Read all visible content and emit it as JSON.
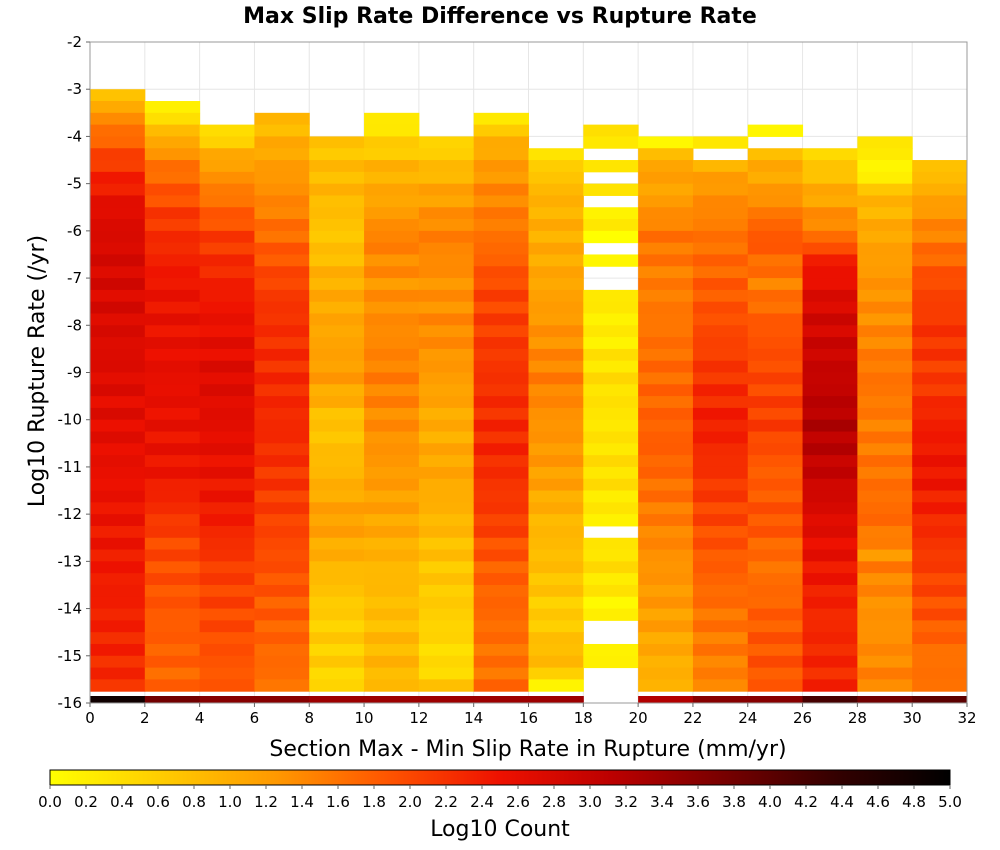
{
  "chart_data": {
    "type": "heatmap",
    "title": "Max Slip Rate Difference vs Rupture Rate",
    "xlabel": "Section Max - Min Slip Rate in Rupture (mm/yr)",
    "ylabel": "Log10 Rupture Rate (/yr)",
    "xlim": [
      0,
      32
    ],
    "ylim": [
      -16,
      -2
    ],
    "x_ticks": [
      "0",
      "2",
      "4",
      "6",
      "8",
      "10",
      "12",
      "14",
      "16",
      "18",
      "20",
      "22",
      "24",
      "26",
      "28",
      "30",
      "32"
    ],
    "y_ticks": [
      "-2",
      "-3",
      "-4",
      "-5",
      "-6",
      "-7",
      "-8",
      "-9",
      "-10",
      "-11",
      "-12",
      "-13",
      "-14",
      "-15",
      "-16"
    ],
    "x_bin_width": 2,
    "y_bin_height": 0.25,
    "grid": true,
    "colorbar": {
      "label": "Log10 Count",
      "range": [
        0,
        5
      ],
      "ticks": [
        "0.0",
        "0.2",
        "0.4",
        "0.6",
        "0.8",
        "1.0",
        "1.2",
        "1.4",
        "1.6",
        "1.8",
        "2.0",
        "2.2",
        "2.4",
        "2.6",
        "2.8",
        "3.0",
        "3.2",
        "3.4",
        "3.6",
        "3.8",
        "4.0",
        "4.2",
        "4.4",
        "4.6",
        "4.8",
        "5.0"
      ],
      "colors": [
        "#ffff00",
        "#ffcc00",
        "#ff9900",
        "#ff5500",
        "#ee1100",
        "#bb0000",
        "#770000",
        "#330000",
        "#000000"
      ],
      "placement": "bottom"
    },
    "columns": [
      {
        "x": 0,
        "top": -3.0,
        "profile": [
          [
            -3.0,
            0.7
          ],
          [
            -3.5,
            1.4
          ],
          [
            -4.5,
            2.2
          ],
          [
            -5.5,
            2.7
          ],
          [
            -6.5,
            2.8
          ],
          [
            -9.0,
            2.7
          ],
          [
            -12.0,
            2.5
          ],
          [
            -15.0,
            2.3
          ],
          [
            -15.75,
            2.2
          ]
        ],
        "floor": 4.8
      },
      {
        "x": 2,
        "top": -3.25,
        "profile": [
          [
            -3.25,
            0.1
          ],
          [
            -3.75,
            0.8
          ],
          [
            -4.5,
            1.6
          ],
          [
            -5.5,
            2.1
          ],
          [
            -7.0,
            2.5
          ],
          [
            -9.0,
            2.6
          ],
          [
            -11.0,
            2.5
          ],
          [
            -12.5,
            2.0
          ],
          [
            -14.5,
            1.8
          ],
          [
            -15.75,
            1.7
          ]
        ],
        "floor": 3.8
      },
      {
        "x": 4,
        "top": -3.75,
        "profile": [
          [
            -3.75,
            0.3
          ],
          [
            -4.25,
            1.0
          ],
          [
            -5.0,
            1.5
          ],
          [
            -6.0,
            2.1
          ],
          [
            -7.5,
            2.5
          ],
          [
            -9.0,
            2.7
          ],
          [
            -10.5,
            2.6
          ],
          [
            -12.0,
            2.4
          ],
          [
            -13.0,
            2.1
          ],
          [
            -15.0,
            1.9
          ],
          [
            -15.75,
            1.8
          ]
        ],
        "floor": 3.6
      },
      {
        "x": 6,
        "top": -3.5,
        "profile": [
          [
            -3.5,
            0.8
          ],
          [
            -4.5,
            1.2
          ],
          [
            -5.5,
            1.5
          ],
          [
            -6.5,
            1.9
          ],
          [
            -7.5,
            2.2
          ],
          [
            -10.0,
            2.3
          ],
          [
            -12.5,
            2.0
          ],
          [
            -14.0,
            1.8
          ],
          [
            -15.75,
            1.6
          ]
        ],
        "floor": 3.6
      },
      {
        "x": 8,
        "top": -4.0,
        "profile": [
          [
            -4.0,
            0.7
          ],
          [
            -5.0,
            0.9
          ],
          [
            -6.0,
            0.7
          ],
          [
            -7.0,
            1.0
          ],
          [
            -9.0,
            1.2
          ],
          [
            -10.0,
            0.7
          ],
          [
            -11.0,
            0.9
          ],
          [
            -12.0,
            1.2
          ],
          [
            -13.0,
            0.9
          ],
          [
            -14.0,
            0.6
          ],
          [
            -15.0,
            0.6
          ],
          [
            -15.75,
            0.4
          ]
        ],
        "floor": 3.4
      },
      {
        "x": 10,
        "top": -3.5,
        "profile": [
          [
            -3.5,
            0.2
          ],
          [
            -4.5,
            0.9
          ],
          [
            -5.5,
            1.2
          ],
          [
            -6.0,
            1.5
          ],
          [
            -7.0,
            1.3
          ],
          [
            -8.0,
            1.4
          ],
          [
            -9.0,
            1.5
          ],
          [
            -10.5,
            1.3
          ],
          [
            -12.0,
            1.1
          ],
          [
            -13.0,
            0.9
          ],
          [
            -14.0,
            0.8
          ],
          [
            -15.0,
            0.9
          ],
          [
            -15.75,
            0.8
          ]
        ],
        "floor": 3.4
      },
      {
        "x": 12,
        "top": -4.0,
        "profile": [
          [
            -4.0,
            0.5
          ],
          [
            -5.0,
            1.1
          ],
          [
            -6.0,
            1.5
          ],
          [
            -7.0,
            1.3
          ],
          [
            -8.0,
            1.4
          ],
          [
            -9.0,
            1.2
          ],
          [
            -10.0,
            1.0
          ],
          [
            -11.0,
            1.1
          ],
          [
            -12.0,
            0.9
          ],
          [
            -13.0,
            0.7
          ],
          [
            -14.0,
            0.6
          ],
          [
            -15.0,
            0.4
          ],
          [
            -15.75,
            0.8
          ]
        ],
        "floor": 3.4
      },
      {
        "x": 14,
        "top": -3.5,
        "profile": [
          [
            -3.5,
            0.3
          ],
          [
            -4.0,
            1.0
          ],
          [
            -5.0,
            1.4
          ],
          [
            -6.0,
            1.6
          ],
          [
            -7.0,
            2.0
          ],
          [
            -8.0,
            2.1
          ],
          [
            -9.0,
            2.2
          ],
          [
            -10.5,
            2.3
          ],
          [
            -12.0,
            2.1
          ],
          [
            -13.0,
            1.8
          ],
          [
            -14.0,
            1.7
          ],
          [
            -15.0,
            1.6
          ],
          [
            -15.75,
            1.7
          ]
        ],
        "floor": 3.4
      },
      {
        "x": 16,
        "top": -4.25,
        "profile": [
          [
            -4.25,
            0.4
          ],
          [
            -5.0,
            0.9
          ],
          [
            -6.0,
            1.0
          ],
          [
            -7.0,
            1.1
          ],
          [
            -8.0,
            1.3
          ],
          [
            -9.0,
            1.5
          ],
          [
            -10.0,
            1.3
          ],
          [
            -11.0,
            1.2
          ],
          [
            -12.0,
            0.9
          ],
          [
            -13.0,
            0.8
          ],
          [
            -14.0,
            0.6
          ],
          [
            -15.0,
            0.9
          ],
          [
            -15.5,
            0.2
          ],
          [
            -15.75,
            0.6
          ]
        ],
        "floor": 3.4
      },
      {
        "x": 18,
        "top": -3.75,
        "profile": [
          [
            -3.75,
            0.5
          ],
          [
            -4.0,
            0.2
          ],
          [
            -5.0,
            0.4
          ],
          [
            -6.0,
            0.1
          ],
          [
            -7.0,
            0.3
          ],
          [
            -8.0,
            0.2
          ],
          [
            -9.0,
            0.4
          ],
          [
            -10.0,
            0.3
          ],
          [
            -11.0,
            0.4
          ],
          [
            -12.0,
            0.2
          ],
          [
            -13.0,
            0.4
          ],
          [
            -14.0,
            0.1
          ],
          [
            -15.0,
            0.2
          ]
        ],
        "empty": [
          -4.25,
          -4.75,
          -5.25,
          -6.25,
          -6.75,
          -7.0,
          -12.25,
          -14.25,
          -14.5,
          -15.25,
          -15.5,
          -15.75
        ],
        "floor": 3.0
      },
      {
        "x": 20,
        "top": -4.0,
        "profile": [
          [
            -4.0,
            0.2
          ],
          [
            -4.5,
            1.2
          ],
          [
            -5.0,
            1.1
          ],
          [
            -6.0,
            1.6
          ],
          [
            -7.0,
            1.5
          ],
          [
            -8.0,
            1.6
          ],
          [
            -9.0,
            1.7
          ],
          [
            -10.5,
            1.8
          ],
          [
            -12.0,
            1.5
          ],
          [
            -13.0,
            1.3
          ],
          [
            -14.0,
            1.2
          ],
          [
            -15.0,
            1.0
          ],
          [
            -15.75,
            0.9
          ]
        ],
        "floor": 3.2
      },
      {
        "x": 22,
        "top": -4.0,
        "profile": [
          [
            -4.0,
            0.4
          ],
          [
            -4.5,
            1.0
          ],
          [
            -5.0,
            1.3
          ],
          [
            -6.0,
            1.6
          ],
          [
            -7.0,
            1.8
          ],
          [
            -8.0,
            2.0
          ],
          [
            -9.0,
            2.2
          ],
          [
            -10.0,
            2.4
          ],
          [
            -11.0,
            2.2
          ],
          [
            -12.0,
            2.0
          ],
          [
            -13.0,
            1.8
          ],
          [
            -14.0,
            1.6
          ],
          [
            -15.0,
            1.5
          ],
          [
            -15.75,
            1.4
          ]
        ],
        "empty": [
          -4.25
        ],
        "floor": 3.6
      },
      {
        "x": 24,
        "top": -3.75,
        "profile": [
          [
            -3.75,
            0.2
          ],
          [
            -4.25,
            0.9
          ],
          [
            -5.0,
            1.2
          ],
          [
            -6.0,
            1.9
          ],
          [
            -7.0,
            1.5
          ],
          [
            -8.0,
            1.9
          ],
          [
            -9.0,
            2.0
          ],
          [
            -10.0,
            2.1
          ],
          [
            -11.0,
            1.8
          ],
          [
            -12.0,
            1.9
          ],
          [
            -13.0,
            1.6
          ],
          [
            -14.0,
            1.8
          ],
          [
            -15.0,
            1.9
          ],
          [
            -15.75,
            1.8
          ]
        ],
        "empty": [
          -4.0
        ],
        "floor": 3.6
      },
      {
        "x": 26,
        "top": -4.25,
        "profile": [
          [
            -4.25,
            0.5
          ],
          [
            -5.0,
            1.0
          ],
          [
            -6.0,
            1.6
          ],
          [
            -6.5,
            2.4
          ],
          [
            -7.5,
            2.8
          ],
          [
            -9.0,
            3.0
          ],
          [
            -10.0,
            3.2
          ],
          [
            -11.0,
            3.0
          ],
          [
            -12.0,
            2.7
          ],
          [
            -13.0,
            2.5
          ],
          [
            -14.0,
            2.3
          ],
          [
            -15.75,
            2.3
          ]
        ],
        "floor": 4.2
      },
      {
        "x": 28,
        "top": -4.0,
        "profile": [
          [
            -4.0,
            0.3
          ],
          [
            -4.75,
            0.1
          ],
          [
            -5.0,
            0.8
          ],
          [
            -6.0,
            1.1
          ],
          [
            -7.0,
            1.3
          ],
          [
            -8.0,
            1.4
          ],
          [
            -9.0,
            1.6
          ],
          [
            -10.0,
            1.5
          ],
          [
            -11.0,
            1.6
          ],
          [
            -12.0,
            1.7
          ],
          [
            -12.75,
            1.3
          ],
          [
            -13.0,
            1.5
          ],
          [
            -14.0,
            1.3
          ],
          [
            -15.0,
            1.4
          ],
          [
            -15.75,
            1.5
          ]
        ],
        "floor": 3.8
      },
      {
        "x": 30,
        "top": -4.5,
        "profile": [
          [
            -4.5,
            0.7
          ],
          [
            -5.0,
            1.0
          ],
          [
            -5.5,
            1.3
          ],
          [
            -6.0,
            1.5
          ],
          [
            -7.0,
            2.0
          ],
          [
            -8.0,
            2.2
          ],
          [
            -9.0,
            2.1
          ],
          [
            -10.0,
            2.4
          ],
          [
            -11.0,
            2.5
          ],
          [
            -12.0,
            2.3
          ],
          [
            -13.0,
            2.1
          ],
          [
            -14.0,
            1.9
          ],
          [
            -15.0,
            1.6
          ],
          [
            -15.75,
            1.7
          ]
        ],
        "floor": 4.0
      }
    ]
  }
}
